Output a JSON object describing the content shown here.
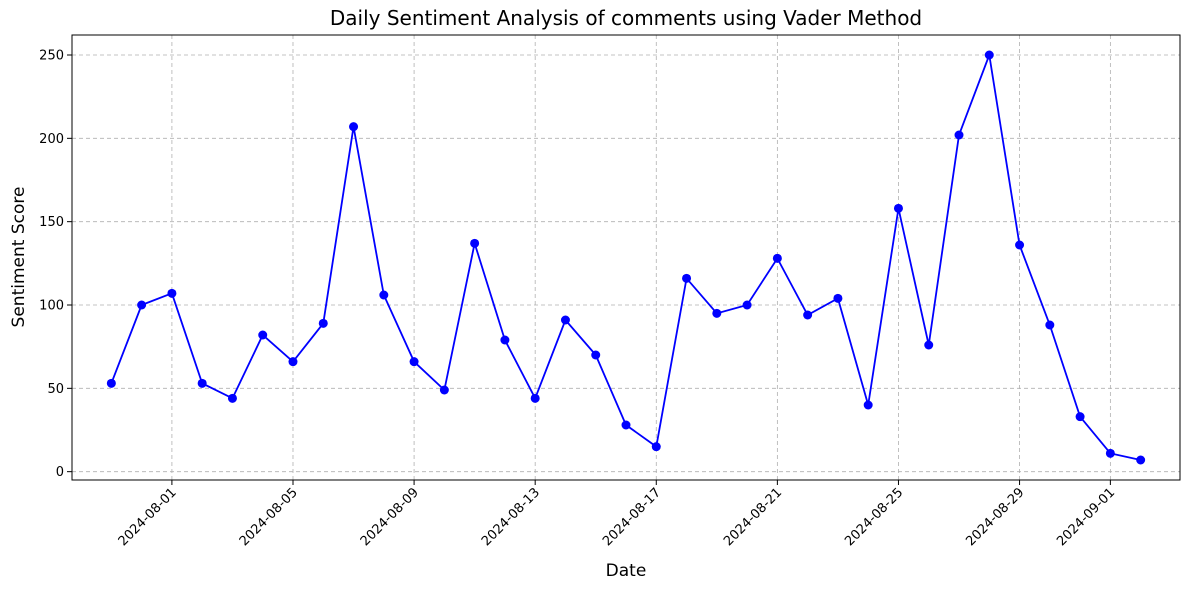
{
  "chart_data": {
    "type": "line",
    "title": "Daily Sentiment Analysis of comments using Vader Method",
    "xlabel": "Date",
    "ylabel": "Sentiment Score",
    "x": [
      "2024-07-30",
      "2024-07-31",
      "2024-08-01",
      "2024-08-02",
      "2024-08-03",
      "2024-08-04",
      "2024-08-05",
      "2024-08-06",
      "2024-08-07",
      "2024-08-08",
      "2024-08-09",
      "2024-08-10",
      "2024-08-11",
      "2024-08-12",
      "2024-08-13",
      "2024-08-14",
      "2024-08-15",
      "2024-08-16",
      "2024-08-17",
      "2024-08-18",
      "2024-08-19",
      "2024-08-20",
      "2024-08-21",
      "2024-08-22",
      "2024-08-23",
      "2024-08-24",
      "2024-08-25",
      "2024-08-26",
      "2024-08-27",
      "2024-08-28",
      "2024-08-29",
      "2024-08-30",
      "2024-08-31",
      "2024-09-01",
      "2024-09-02"
    ],
    "series": [
      {
        "color": "#0000ff",
        "marker": "circle",
        "values": [
          53,
          100,
          107,
          53,
          44,
          82,
          66,
          89,
          207,
          106,
          66,
          49,
          137,
          79,
          44,
          91,
          70,
          28,
          15,
          116,
          95,
          100,
          128,
          94,
          104,
          40,
          158,
          76,
          202,
          250,
          136,
          88,
          33,
          11,
          7
        ]
      }
    ],
    "xticks": [
      "2024-08-01",
      "2024-08-05",
      "2024-08-09",
      "2024-08-13",
      "2024-08-17",
      "2024-08-21",
      "2024-08-25",
      "2024-08-29",
      "2024-09-01"
    ],
    "yticks": [
      0,
      50,
      100,
      150,
      200,
      250
    ],
    "ylim": [
      -5,
      262
    ],
    "xlim": [
      "2024-07-29",
      "2024-09-03"
    ],
    "grid": true
  }
}
